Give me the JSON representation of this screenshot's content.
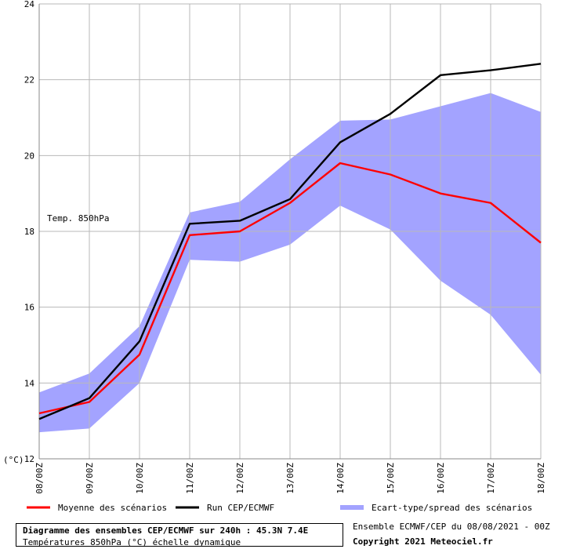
{
  "chart_data": {
    "type": "line",
    "title": "Diagramme des ensembles CEP/ECMWF sur 240h : 45.3N 7.4E",
    "subtitle": "Températures 850hPa (°C) échelle dynamique",
    "annotation": "Temp. 850hPa",
    "ylabel": "(°C)",
    "ylim": [
      12,
      24
    ],
    "yticks": [
      12,
      14,
      16,
      18,
      20,
      22,
      24
    ],
    "categories": [
      "08/00Z",
      "09/00Z",
      "10/00Z",
      "11/00Z",
      "12/00Z",
      "13/00Z",
      "14/00Z",
      "15/00Z",
      "16/00Z",
      "17/00Z",
      "18/00Z"
    ],
    "x": [
      0,
      1,
      2,
      3,
      4,
      5,
      6,
      7,
      8,
      9,
      10
    ],
    "grid": true,
    "legend_position": "bottom",
    "series": [
      {
        "name": "Moyenne des scénarios",
        "kind": "line",
        "color": "#ff0000",
        "points": [
          [
            0,
            13.2
          ],
          [
            1,
            13.5
          ],
          [
            2,
            14.75
          ],
          [
            3,
            17.9
          ],
          [
            4,
            18.0
          ],
          [
            5,
            18.75
          ],
          [
            6,
            19.8
          ],
          [
            7,
            19.5
          ],
          [
            8,
            19.0
          ],
          [
            9,
            18.75
          ],
          [
            10,
            17.7
          ]
        ]
      },
      {
        "name": "Run CEP/ECMWF",
        "kind": "line",
        "color": "#000000",
        "points": [
          [
            0,
            13.05
          ],
          [
            1,
            13.6
          ],
          [
            2,
            15.1
          ],
          [
            3,
            18.2
          ],
          [
            4,
            18.28
          ],
          [
            5,
            18.85
          ],
          [
            6,
            20.35
          ],
          [
            7,
            21.1
          ],
          [
            8,
            22.12
          ],
          [
            9,
            22.25
          ],
          [
            10,
            22.42
          ]
        ]
      },
      {
        "name": "Ecart-type/spread des scénarios",
        "kind": "band",
        "color": "#a3a3ff",
        "upper": [
          13.75,
          14.25,
          15.5,
          18.5,
          18.78,
          19.9,
          20.92,
          20.95,
          21.3,
          21.65,
          21.15
        ],
        "lower": [
          12.7,
          12.8,
          14.0,
          17.25,
          17.2,
          17.65,
          18.68,
          18.05,
          16.7,
          15.8,
          14.22
        ]
      }
    ]
  },
  "footer": {
    "source": "Ensemble ECMWF/CEP du 08/08/2021 - 00Z",
    "copyright": "Copyright 2021 Meteociel.fr"
  }
}
